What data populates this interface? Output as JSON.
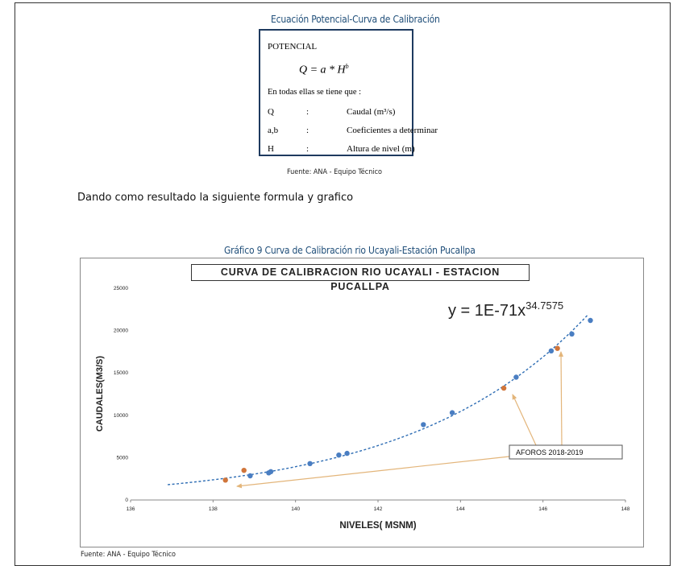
{
  "top_caption": "Ecuación Potencial-Curva de Calibración",
  "formula_box": {
    "heading": "POTENCIAL",
    "eq_left": "Q = a * H",
    "eq_exp": "b",
    "intro": "En todas ellas se tiene que :",
    "rows": [
      {
        "sym": "Q",
        "sep": ":",
        "desc": "Caudal (m³/s)"
      },
      {
        "sym": "a,b",
        "sep": ":",
        "desc": "Coeficientes a determinar"
      },
      {
        "sym": "H",
        "sep": ":",
        "desc": "Altura de nivel (m)"
      }
    ]
  },
  "source_1": "Fuente: ANA - Equipo Técnico",
  "body_text": "Dando como resultado la siguiente formula y grafico",
  "chart_caption": "Gráfico 9 Curva de Calibración rio Ucayali-Estación Pucallpa",
  "source_2": "Fuente: ANA - Equipo Técnico",
  "chart_data": {
    "type": "scatter",
    "title": "CURVA DE CALIBRACION RIO UCAYALI - ESTACION PUCALLPA",
    "xlabel": "NIVELES( MSNM)",
    "ylabel": "CAUDALES(M3/S)",
    "xlim": [
      136,
      148
    ],
    "ylim": [
      0,
      25000
    ],
    "xticks": [
      "136",
      "138",
      "140",
      "142",
      "144",
      "146",
      "148"
    ],
    "yticks": [
      "0",
      "5000",
      "10000",
      "15000",
      "20000",
      "25000"
    ],
    "equation_main": "y = 1E-71x",
    "equation_exp": "34.7575",
    "trendline": {
      "type": "power",
      "a": 1e-71,
      "b": 34.7575,
      "x_range": [
        136.9,
        147.1
      ],
      "style": "dashed",
      "color": "#2e6db4"
    },
    "annotation": "AFOROS 2018-2019",
    "series": [
      {
        "color": "#4a7ec2",
        "points": [
          [
            138.9,
            2850
          ],
          [
            139.35,
            3200
          ],
          [
            139.4,
            3350
          ],
          [
            140.35,
            4300
          ],
          [
            141.05,
            5300
          ],
          [
            141.25,
            5500
          ],
          [
            143.1,
            8900
          ],
          [
            143.8,
            10300
          ],
          [
            145.35,
            14500
          ],
          [
            146.2,
            17600
          ],
          [
            146.7,
            19600
          ],
          [
            147.15,
            21200
          ]
        ]
      },
      {
        "color": "#d0753a",
        "points": [
          [
            138.3,
            2350
          ],
          [
            138.75,
            3500
          ],
          [
            145.05,
            13200
          ],
          [
            146.35,
            17900
          ]
        ]
      }
    ],
    "arrow_color": "#e3b57a"
  }
}
